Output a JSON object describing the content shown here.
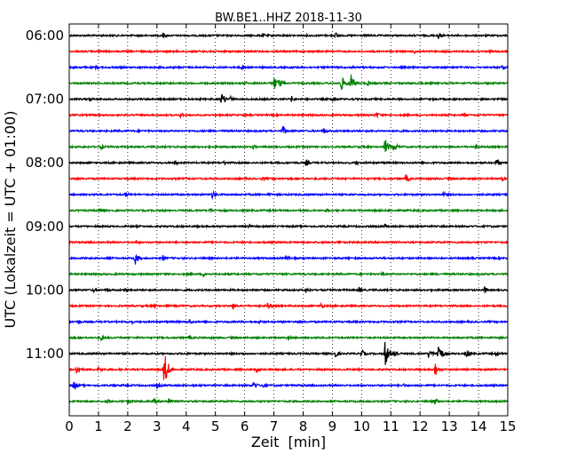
{
  "chart_data": {
    "type": "line",
    "title": "BW.BE1..HHZ 2018-11-30",
    "xlabel": "Zeit  [min]",
    "ylabel": "UTC (Lokalzeit = UTC + 01:00)",
    "xlim": [
      0,
      15
    ],
    "xticks": [
      0,
      1,
      2,
      3,
      4,
      5,
      6,
      7,
      8,
      9,
      10,
      11,
      12,
      13,
      14,
      15
    ],
    "xtick_labels": [
      "0",
      "1",
      "2",
      "3",
      "4",
      "5",
      "6",
      "7",
      "8",
      "9",
      "10",
      "11",
      "12",
      "13",
      "14",
      "15"
    ],
    "ytick_labels": [
      "06:00",
      "07:00",
      "08:00",
      "09:00",
      "10:00",
      "11:00"
    ],
    "grid": "vertical dotted",
    "colors": [
      "#000000",
      "#ff0000",
      "#0000ff",
      "#008000"
    ],
    "rows": [
      {
        "start": "06:00",
        "color": "#000000",
        "events": [
          {
            "t": 3.2,
            "a": 4
          },
          {
            "t": 6.6,
            "a": 3
          },
          {
            "t": 9.1,
            "a": 4
          },
          {
            "t": 12.6,
            "a": 5
          }
        ]
      },
      {
        "start": "06:15",
        "color": "#ff0000",
        "events": [
          {
            "t": 1.0,
            "a": 3
          },
          {
            "t": 4.8,
            "a": 3
          },
          {
            "t": 11.8,
            "a": 3
          },
          {
            "t": 14.4,
            "a": 3
          }
        ]
      },
      {
        "start": "06:30",
        "color": "#0000ff",
        "events": [
          {
            "t": 0.9,
            "a": 3
          },
          {
            "t": 5.9,
            "a": 4
          },
          {
            "t": 9.7,
            "a": 3
          },
          {
            "t": 14.8,
            "a": 3
          }
        ]
      },
      {
        "start": "06:45",
        "color": "#008000",
        "events": [
          {
            "t": 6.0,
            "a": 3
          },
          {
            "t": 7.0,
            "a": 9
          },
          {
            "t": 7.2,
            "a": 6
          },
          {
            "t": 9.3,
            "a": 10
          },
          {
            "t": 9.6,
            "a": 14
          },
          {
            "t": 10.2,
            "a": 4
          }
        ]
      },
      {
        "start": "07:00",
        "color": "#000000",
        "events": [
          {
            "t": 0.7,
            "a": 3
          },
          {
            "t": 5.2,
            "a": 8
          },
          {
            "t": 5.5,
            "a": 4
          },
          {
            "t": 7.6,
            "a": 4
          },
          {
            "t": 9.0,
            "a": 4
          }
        ]
      },
      {
        "start": "07:15",
        "color": "#ff0000",
        "events": [
          {
            "t": 3.8,
            "a": 3
          },
          {
            "t": 10.5,
            "a": 4
          },
          {
            "t": 13.5,
            "a": 3
          }
        ]
      },
      {
        "start": "07:30",
        "color": "#0000ff",
        "events": [
          {
            "t": 7.3,
            "a": 6
          },
          {
            "t": 8.7,
            "a": 4
          },
          {
            "t": 11.2,
            "a": 3
          }
        ]
      },
      {
        "start": "07:45",
        "color": "#008000",
        "events": [
          {
            "t": 1.1,
            "a": 3
          },
          {
            "t": 6.3,
            "a": 3
          },
          {
            "t": 10.8,
            "a": 10
          },
          {
            "t": 11.1,
            "a": 6
          },
          {
            "t": 13.9,
            "a": 3
          }
        ]
      },
      {
        "start": "08:00",
        "color": "#000000",
        "events": [
          {
            "t": 3.6,
            "a": 3
          },
          {
            "t": 5.3,
            "a": 3
          },
          {
            "t": 8.1,
            "a": 4
          },
          {
            "t": 9.8,
            "a": 3
          },
          {
            "t": 14.6,
            "a": 5
          }
        ]
      },
      {
        "start": "08:15",
        "color": "#ff0000",
        "events": [
          {
            "t": 6.6,
            "a": 3
          },
          {
            "t": 11.5,
            "a": 6
          },
          {
            "t": 14.8,
            "a": 3
          }
        ]
      },
      {
        "start": "08:30",
        "color": "#0000ff",
        "events": [
          {
            "t": 1.9,
            "a": 4
          },
          {
            "t": 4.9,
            "a": 5
          },
          {
            "t": 6.8,
            "a": 3
          },
          {
            "t": 12.8,
            "a": 3
          }
        ]
      },
      {
        "start": "08:45",
        "color": "#008000",
        "events": [
          {
            "t": 1.0,
            "a": 4
          },
          {
            "t": 4.8,
            "a": 3
          },
          {
            "t": 8.8,
            "a": 3
          }
        ]
      },
      {
        "start": "09:00",
        "color": "#000000",
        "events": [
          {
            "t": 6.1,
            "a": 3
          },
          {
            "t": 10.8,
            "a": 3
          }
        ]
      },
      {
        "start": "09:15",
        "color": "#ff0000",
        "events": [
          {
            "t": 2.3,
            "a": 3
          },
          {
            "t": 9.2,
            "a": 3
          }
        ]
      },
      {
        "start": "09:30",
        "color": "#0000ff",
        "events": [
          {
            "t": 1.3,
            "a": 3
          },
          {
            "t": 2.25,
            "a": 8
          },
          {
            "t": 3.2,
            "a": 4
          },
          {
            "t": 7.4,
            "a": 4
          }
        ]
      },
      {
        "start": "09:45",
        "color": "#008000",
        "events": [
          {
            "t": 4.6,
            "a": 4
          },
          {
            "t": 10.7,
            "a": 3
          }
        ]
      },
      {
        "start": "10:00",
        "color": "#000000",
        "events": [
          {
            "t": 0.8,
            "a": 3
          },
          {
            "t": 1.3,
            "a": 3
          },
          {
            "t": 1.9,
            "a": 3
          },
          {
            "t": 8.1,
            "a": 4
          },
          {
            "t": 9.9,
            "a": 4
          },
          {
            "t": 14.2,
            "a": 4
          }
        ]
      },
      {
        "start": "10:15",
        "color": "#ff0000",
        "events": [
          {
            "t": 2.9,
            "a": 3
          },
          {
            "t": 5.6,
            "a": 4
          },
          {
            "t": 6.8,
            "a": 5
          },
          {
            "t": 8.6,
            "a": 4
          }
        ]
      },
      {
        "start": "10:30",
        "color": "#0000ff",
        "events": [
          {
            "t": 0.3,
            "a": 3
          },
          {
            "t": 2.1,
            "a": 3
          },
          {
            "t": 4.1,
            "a": 4
          },
          {
            "t": 6.5,
            "a": 3
          }
        ]
      },
      {
        "start": "10:45",
        "color": "#008000",
        "events": [
          {
            "t": 1.1,
            "a": 4
          },
          {
            "t": 4.1,
            "a": 3
          },
          {
            "t": 7.5,
            "a": 3
          }
        ]
      },
      {
        "start": "11:00",
        "color": "#000000",
        "events": [
          {
            "t": 9.1,
            "a": 5
          },
          {
            "t": 10.0,
            "a": 5
          },
          {
            "t": 10.8,
            "a": 16
          },
          {
            "t": 11.1,
            "a": 6
          },
          {
            "t": 12.3,
            "a": 7
          },
          {
            "t": 12.6,
            "a": 15
          },
          {
            "t": 13.6,
            "a": 6
          },
          {
            "t": 14.6,
            "a": 4
          }
        ]
      },
      {
        "start": "11:15",
        "color": "#ff0000",
        "events": [
          {
            "t": 0.25,
            "a": 7
          },
          {
            "t": 1.0,
            "a": 4
          },
          {
            "t": 3.25,
            "a": 22
          },
          {
            "t": 6.4,
            "a": 4
          },
          {
            "t": 12.5,
            "a": 9
          }
        ]
      },
      {
        "start": "11:30",
        "color": "#0000ff",
        "events": [
          {
            "t": 0.15,
            "a": 6
          },
          {
            "t": 1.5,
            "a": 3
          },
          {
            "t": 3.0,
            "a": 4
          },
          {
            "t": 6.3,
            "a": 5
          },
          {
            "t": 6.6,
            "a": 4
          },
          {
            "t": 11.4,
            "a": 3
          }
        ]
      },
      {
        "start": "11:45",
        "color": "#008000",
        "events": [
          {
            "t": 1.3,
            "a": 3
          },
          {
            "t": 2.0,
            "a": 4
          },
          {
            "t": 2.9,
            "a": 3
          },
          {
            "t": 3.4,
            "a": 4
          },
          {
            "t": 12.5,
            "a": 4
          }
        ]
      }
    ]
  }
}
